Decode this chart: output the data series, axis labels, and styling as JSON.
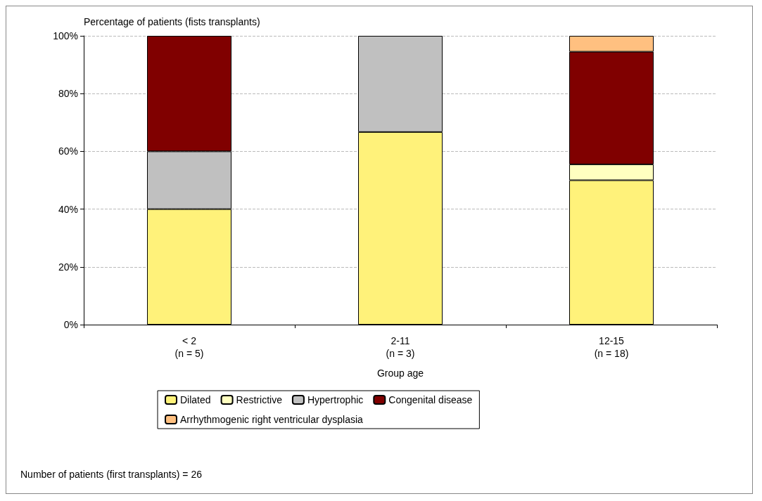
{
  "chart_data": {
    "type": "bar",
    "stacked": true,
    "ylabel": "Percentage of patients (fists transplants)",
    "xlabel": "Group age",
    "categories": [
      "< 2\n(n = 5)",
      "2-11\n(n = 3)",
      "12-15\n(n = 18)"
    ],
    "series": [
      {
        "name": "Dilated",
        "color": "#fff27a",
        "values": [
          40,
          66.7,
          50
        ]
      },
      {
        "name": "Restrictive",
        "color": "#ffffc0",
        "values": [
          null,
          null,
          5.5
        ]
      },
      {
        "name": "Hypertrophic",
        "color": "#c0c0c0",
        "values": [
          20,
          33.3,
          null
        ]
      },
      {
        "name": "Congenital disease",
        "color": "#800000",
        "values": [
          40,
          null,
          39
        ]
      },
      {
        "name": "Arrhythmogenic right ventricular dysplasia",
        "color": "#ffc080",
        "values": [
          null,
          null,
          5.5
        ]
      }
    ],
    "ylim": [
      0,
      100
    ],
    "yticks": [
      {
        "value": 0,
        "label": "0%"
      },
      {
        "value": 20,
        "label": "20%"
      },
      {
        "value": 40,
        "label": "40%"
      },
      {
        "value": 60,
        "label": "60%"
      },
      {
        "value": 80,
        "label": "80%"
      },
      {
        "value": 100,
        "label": "100%"
      }
    ],
    "grid": "y",
    "legend": "bottom",
    "annotations": [
      "Number of patients (first transplants) = 26"
    ]
  }
}
